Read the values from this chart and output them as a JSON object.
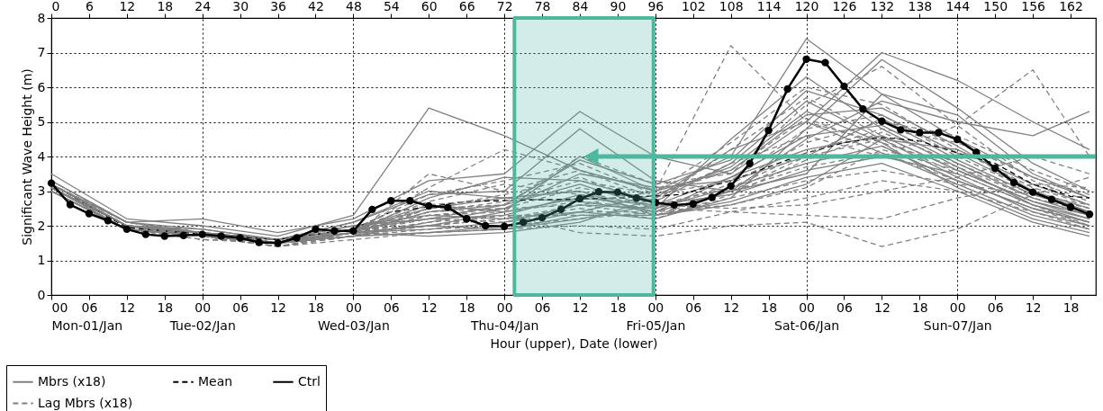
{
  "chart_data": {
    "type": "line",
    "ylabel": "Significant Wave Height (m)",
    "xlabel": "Hour (upper), Date (lower)",
    "x": [
      0,
      12,
      24,
      36,
      48,
      60,
      72,
      84,
      96,
      108,
      120,
      132,
      144,
      156,
      165
    ],
    "xlim": [
      0,
      166
    ],
    "ylim": [
      0,
      8
    ],
    "yticks": [
      0,
      1,
      2,
      3,
      4,
      5,
      6,
      7,
      8
    ],
    "xticks": [
      0,
      6,
      12,
      18,
      24,
      30,
      36,
      42,
      48,
      54,
      60,
      66,
      72,
      78,
      84,
      90,
      96,
      102,
      108,
      114,
      120,
      126,
      132,
      138,
      144,
      150,
      156,
      162
    ],
    "x2lim": [
      "--01-01T00:00",
      "--01-07T22:00"
    ],
    "x2ticks": [
      {
        "value": "--01-01T00:00",
        "label": "00\nMon-01/Jan"
      },
      {
        "value": "--01-01T06:00",
        "label": "06"
      },
      {
        "value": "--01-01T12:00",
        "label": "12"
      },
      {
        "value": "--01-01T18:00",
        "label": "18"
      },
      {
        "value": "--01-02T00:00",
        "label": "00\nTue-02/Jan"
      },
      {
        "value": "--01-02T06:00",
        "label": "06"
      },
      {
        "value": "--01-02T12:00",
        "label": "12"
      },
      {
        "value": "--01-02T18:00",
        "label": "18"
      },
      {
        "value": "--01-03T00:00",
        "label": "00\nWed-03/Jan"
      },
      {
        "value": "--01-03T06:00",
        "label": "06"
      },
      {
        "value": "--01-03T12:00",
        "label": "12"
      },
      {
        "value": "--01-03T18:00",
        "label": "18"
      },
      {
        "value": "--01-04T00:00",
        "label": "00\nThu-04/Jan"
      },
      {
        "value": "--01-04T06:00",
        "label": "06"
      },
      {
        "value": "--01-04T12:00",
        "label": "12"
      },
      {
        "value": "--01-04T18:00",
        "label": "18"
      },
      {
        "value": "--01-05T00:00",
        "label": "00\nFri-05/Jan"
      },
      {
        "value": "--01-05T06:00",
        "label": "06"
      },
      {
        "value": "--01-05T12:00",
        "label": "12"
      },
      {
        "value": "--01-05T18:00",
        "label": "18"
      },
      {
        "value": "--01-06T00:00",
        "label": "00\nSat-06/Jan"
      },
      {
        "value": "--01-06T06:00",
        "label": "06"
      },
      {
        "value": "--01-06T12:00",
        "label": "12"
      },
      {
        "value": "--01-06T18:00",
        "label": "18"
      },
      {
        "value": "--01-07T00:00",
        "label": "00\nSun-07/Jan"
      },
      {
        "value": "--01-07T06:00",
        "label": "06"
      },
      {
        "value": "--01-07T12:00",
        "label": "12"
      },
      {
        "value": "--01-07T18:00",
        "label": "18"
      }
    ],
    "grid": true,
    "legend": "bottom left",
    "bands": [
      {
        "axis": "x",
        "from": 73.6,
        "to": 95.7,
        "color": "#4db89f"
      }
    ],
    "series": [
      {
        "name": "Mbrs (x18)",
        "color": "#808080",
        "line_style": "solid",
        "values": [
          3.5,
          2.2,
          2.0,
          1.7,
          2.3,
          5.4,
          4.6,
          3.6,
          3.0,
          4.0,
          7.4,
          5.8,
          4.5,
          3.4,
          2.8
        ]
      },
      {
        "color": "#808080",
        "line_style": "solid",
        "values": [
          3.3,
          2.1,
          2.2,
          1.8,
          2.2,
          3.3,
          3.5,
          5.3,
          4.0,
          3.5,
          5.0,
          7.0,
          6.2,
          5.0,
          4.2
        ]
      },
      {
        "color": "#808080",
        "line_style": "solid",
        "values": [
          3.1,
          2.0,
          1.9,
          1.6,
          2.1,
          2.9,
          3.0,
          4.8,
          3.3,
          3.0,
          4.5,
          5.6,
          5.0,
          4.6,
          5.3
        ]
      },
      {
        "color": "#808080",
        "line_style": "solid",
        "values": [
          3.0,
          1.9,
          1.8,
          1.6,
          1.9,
          2.6,
          2.4,
          4.0,
          3.0,
          3.6,
          5.2,
          5.4,
          4.3,
          3.0,
          2.4
        ]
      },
      {
        "color": "#808080",
        "line_style": "solid",
        "values": [
          3.2,
          2.0,
          1.8,
          1.5,
          1.8,
          2.4,
          2.6,
          3.2,
          2.5,
          4.5,
          6.3,
          4.8,
          3.7,
          2.6,
          2.2
        ]
      },
      {
        "color": "#808080",
        "line_style": "solid",
        "values": [
          3.1,
          1.9,
          1.7,
          1.6,
          2.0,
          2.2,
          2.3,
          2.9,
          2.4,
          3.0,
          3.5,
          5.8,
          5.2,
          3.5,
          2.8
        ]
      },
      {
        "color": "#808080",
        "line_style": "solid",
        "values": [
          3.0,
          1.9,
          1.7,
          1.5,
          1.8,
          2.8,
          3.4,
          3.3,
          2.7,
          3.8,
          5.6,
          4.5,
          3.4,
          2.4,
          2.0
        ]
      },
      {
        "color": "#808080",
        "line_style": "solid",
        "values": [
          3.2,
          2.1,
          1.8,
          1.5,
          1.7,
          1.8,
          2.0,
          2.4,
          2.2,
          2.8,
          4.8,
          6.8,
          5.4,
          3.8,
          3.0
        ]
      },
      {
        "color": "#808080",
        "line_style": "solid",
        "values": [
          3.1,
          2.0,
          1.7,
          1.5,
          1.8,
          2.0,
          1.9,
          2.2,
          2.6,
          3.4,
          4.2,
          4.6,
          3.6,
          2.7,
          2.2
        ]
      },
      {
        "color": "#808080",
        "line_style": "solid",
        "values": [
          3.0,
          1.9,
          1.7,
          1.5,
          1.9,
          2.5,
          2.8,
          3.0,
          2.3,
          2.6,
          3.2,
          4.5,
          4.2,
          3.2,
          2.6
        ]
      },
      {
        "color": "#808080",
        "line_style": "solid",
        "values": [
          3.2,
          2.0,
          1.8,
          1.6,
          1.8,
          1.7,
          1.8,
          2.1,
          2.8,
          4.2,
          5.0,
          4.1,
          3.2,
          2.3,
          1.9
        ]
      },
      {
        "color": "#808080",
        "line_style": "solid",
        "values": [
          3.1,
          2.0,
          1.7,
          1.5,
          1.7,
          2.1,
          2.5,
          3.5,
          3.1,
          3.3,
          4.0,
          5.1,
          3.9,
          2.9,
          2.4
        ]
      },
      {
        "color": "#808080",
        "line_style": "solid",
        "values": [
          3.0,
          1.9,
          1.7,
          1.5,
          1.8,
          1.9,
          2.1,
          2.6,
          2.5,
          3.1,
          3.8,
          4.3,
          3.3,
          2.5,
          2.1
        ]
      },
      {
        "color": "#808080",
        "line_style": "solid",
        "values": [
          3.2,
          2.0,
          1.8,
          1.6,
          2.1,
          3.0,
          2.8,
          2.7,
          2.4,
          3.4,
          4.6,
          4.9,
          3.8,
          2.8,
          2.3
        ]
      },
      {
        "color": "#808080",
        "line_style": "solid",
        "values": [
          3.3,
          2.1,
          1.9,
          1.6,
          2.0,
          2.3,
          2.2,
          2.4,
          2.9,
          3.7,
          5.3,
          4.4,
          3.1,
          2.2,
          1.8
        ]
      },
      {
        "color": "#808080",
        "line_style": "solid",
        "values": [
          3.1,
          2.0,
          1.8,
          1.5,
          1.8,
          2.0,
          2.4,
          2.8,
          2.6,
          2.9,
          3.6,
          4.0,
          3.5,
          2.6,
          2.1
        ]
      },
      {
        "color": "#808080",
        "line_style": "solid",
        "values": [
          3.0,
          1.9,
          1.7,
          1.5,
          1.7,
          1.8,
          1.9,
          2.3,
          2.3,
          2.7,
          3.4,
          3.8,
          3.0,
          2.1,
          1.7
        ]
      },
      {
        "color": "#808080",
        "line_style": "solid",
        "values": [
          3.2,
          2.0,
          1.8,
          1.6,
          1.9,
          2.2,
          2.6,
          3.9,
          3.2,
          3.9,
          5.9,
          5.2,
          4.1,
          3.0,
          2.5
        ]
      },
      {
        "name": "Ctrl",
        "color": "#000000",
        "line_style": "solid",
        "marker": "circle",
        "x": [
          0,
          3,
          6,
          9,
          12,
          15,
          18,
          21,
          24,
          27,
          30,
          33,
          36,
          39,
          42,
          45,
          48,
          51,
          54,
          57,
          60,
          63,
          66,
          69,
          72,
          75,
          78,
          81,
          84,
          87,
          90,
          93,
          96,
          99,
          102,
          105,
          108,
          111,
          114,
          117,
          120,
          123,
          126,
          129,
          132,
          135,
          138,
          141,
          144,
          147,
          150,
          153,
          156,
          159,
          162,
          165
        ],
        "values": [
          3.23,
          2.61,
          2.35,
          2.15,
          1.9,
          1.75,
          1.7,
          1.72,
          1.75,
          1.7,
          1.65,
          1.52,
          1.5,
          1.65,
          1.9,
          1.85,
          1.85,
          2.47,
          2.72,
          2.72,
          2.57,
          2.53,
          2.2,
          2.0,
          1.98,
          2.1,
          2.23,
          2.47,
          2.78,
          2.98,
          2.97,
          2.8,
          2.67,
          2.6,
          2.63,
          2.82,
          3.15,
          3.8,
          4.75,
          5.95,
          6.81,
          6.71,
          6.03,
          5.37,
          5.02,
          4.77,
          4.69,
          4.69,
          4.49,
          4.12,
          3.66,
          3.25,
          2.97,
          2.76,
          2.54,
          2.33
        ]
      },
      {
        "name": "Mean",
        "color": "#000000",
        "line_style": "dashed",
        "x": [
          0,
          12,
          24,
          36,
          48,
          54,
          66,
          78,
          90,
          100,
          108,
          114,
          120,
          126,
          132,
          138,
          144,
          150,
          156,
          162,
          165
        ],
        "values": [
          3.2,
          1.95,
          1.75,
          1.6,
          1.9,
          2.4,
          2.7,
          2.75,
          2.8,
          2.9,
          3.3,
          3.7,
          4.1,
          4.4,
          4.55,
          4.45,
          4.1,
          3.8,
          3.2,
          2.85,
          2.8
        ]
      },
      {
        "name": "Lag Mbrs (x18)",
        "color": "#808080",
        "line_style": "dashed",
        "values": [
          3.3,
          2.1,
          1.8,
          1.5,
          1.8,
          2.4,
          2.5,
          2.6,
          3.0,
          7.2,
          5.0,
          4.4,
          3.7,
          2.8,
          2.4
        ]
      },
      {
        "color": "#808080",
        "line_style": "dashed",
        "values": [
          3.1,
          2.0,
          1.7,
          1.4,
          1.7,
          3.5,
          3.0,
          3.6,
          2.8,
          3.8,
          4.6,
          4.0,
          4.9,
          6.5,
          4.0
        ]
      },
      {
        "color": "#808080",
        "line_style": "dashed",
        "values": [
          3.0,
          1.9,
          1.6,
          1.5,
          1.9,
          2.0,
          2.3,
          1.8,
          1.7,
          2.0,
          2.1,
          1.4,
          1.9,
          2.9,
          3.4
        ]
      },
      {
        "color": "#808080",
        "line_style": "dashed",
        "values": [
          3.2,
          2.0,
          1.8,
          1.5,
          1.8,
          2.6,
          2.8,
          3.0,
          2.5,
          2.4,
          2.3,
          2.2,
          2.8,
          3.2,
          3.1
        ]
      },
      {
        "color": "#808080",
        "line_style": "dashed",
        "values": [
          3.1,
          1.9,
          1.7,
          1.4,
          1.8,
          3.1,
          4.2,
          3.6,
          3.0,
          4.4,
          6.0,
          5.5,
          4.2,
          3.1,
          2.6
        ]
      },
      {
        "color": "#808080",
        "line_style": "dashed",
        "values": [
          3.0,
          1.9,
          1.7,
          1.5,
          1.8,
          2.3,
          2.4,
          2.7,
          2.5,
          3.2,
          4.4,
          5.0,
          4.6,
          3.6,
          3.0
        ]
      },
      {
        "color": "#808080",
        "line_style": "dashed",
        "values": [
          3.2,
          2.1,
          1.8,
          1.5,
          1.7,
          2.0,
          2.2,
          2.5,
          2.2,
          2.9,
          3.9,
          4.7,
          3.8,
          2.9,
          2.6
        ]
      },
      {
        "color": "#808080",
        "line_style": "dashed",
        "values": [
          3.1,
          2.0,
          1.7,
          1.4,
          1.7,
          2.5,
          2.6,
          4.0,
          3.2,
          3.5,
          5.5,
          6.6,
          4.9,
          3.3,
          2.7
        ]
      },
      {
        "color": "#808080",
        "line_style": "dashed",
        "values": [
          3.0,
          1.9,
          1.6,
          1.5,
          1.8,
          2.2,
          2.1,
          2.4,
          2.4,
          2.6,
          3.1,
          4.2,
          3.6,
          2.7,
          2.3
        ]
      },
      {
        "color": "#808080",
        "line_style": "dashed",
        "values": [
          3.2,
          2.0,
          1.8,
          1.5,
          1.9,
          2.7,
          3.2,
          2.9,
          2.6,
          2.5,
          2.6,
          3.0,
          3.4,
          4.0,
          3.5
        ]
      },
      {
        "color": "#808080",
        "line_style": "dashed",
        "values": [
          3.1,
          2.0,
          1.7,
          1.5,
          1.7,
          1.9,
          2.0,
          2.2,
          2.4,
          3.0,
          4.0,
          4.5,
          3.5,
          2.6,
          2.0
        ]
      },
      {
        "color": "#808080",
        "line_style": "dashed",
        "values": [
          3.0,
          1.9,
          1.7,
          1.4,
          1.8,
          2.4,
          2.7,
          3.3,
          2.9,
          3.3,
          4.8,
          5.2,
          4.0,
          3.0,
          2.5
        ]
      },
      {
        "color": "#808080",
        "line_style": "dashed",
        "values": [
          3.1,
          2.0,
          1.8,
          1.5,
          1.8,
          2.1,
          2.3,
          2.3,
          2.3,
          2.8,
          3.3,
          3.6,
          3.2,
          2.9,
          2.5
        ]
      },
      {
        "color": "#808080",
        "line_style": "dashed",
        "values": [
          3.2,
          2.1,
          1.8,
          1.6,
          1.9,
          2.9,
          3.3,
          3.8,
          2.9,
          3.6,
          5.1,
          4.3,
          3.3,
          2.5,
          2.1
        ]
      },
      {
        "color": "#808080",
        "line_style": "dashed",
        "values": [
          3.0,
          1.9,
          1.7,
          1.4,
          1.6,
          1.8,
          1.9,
          2.0,
          1.9,
          2.4,
          2.8,
          3.3,
          3.0,
          2.4,
          1.9
        ]
      },
      {
        "color": "#808080",
        "line_style": "dashed",
        "values": [
          3.1,
          2.0,
          1.7,
          1.5,
          1.7,
          2.3,
          2.5,
          3.1,
          2.7,
          4.2,
          5.7,
          4.6,
          3.6,
          2.7,
          2.3
        ]
      },
      {
        "color": "#808080",
        "line_style": "dashed",
        "values": [
          3.2,
          2.0,
          1.8,
          1.5,
          1.8,
          2.0,
          2.2,
          2.6,
          2.3,
          3.0,
          3.7,
          4.1,
          3.3,
          2.5,
          2.0
        ]
      },
      {
        "color": "#808080",
        "line_style": "dashed",
        "values": [
          3.1,
          2.0,
          1.7,
          1.5,
          1.8,
          2.5,
          2.9,
          3.4,
          2.6,
          3.1,
          4.1,
          4.8,
          4.4,
          3.4,
          2.9
        ]
      }
    ]
  }
}
